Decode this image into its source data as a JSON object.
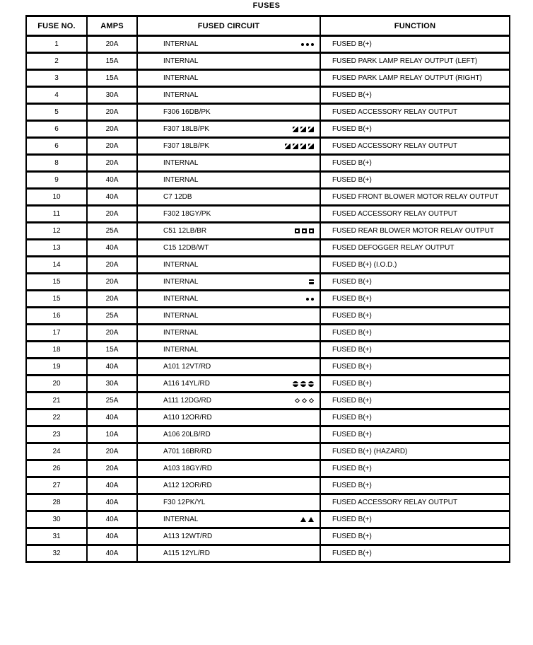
{
  "title": "FUSES",
  "colors": {
    "border": "#000000",
    "text": "#000000",
    "background": "#ffffff"
  },
  "table": {
    "headers": [
      "FUSE NO.",
      "AMPS",
      "FUSED CIRCUIT",
      "FUNCTION"
    ],
    "rows": [
      {
        "fuse_no": "1",
        "amps": "20A",
        "circuit": "INTERNAL",
        "icons": {
          "glyph": "bold-circle",
          "count": 3
        },
        "function": "FUSED B(+)"
      },
      {
        "fuse_no": "2",
        "amps": "15A",
        "circuit": "INTERNAL",
        "icons": null,
        "function": "FUSED PARK LAMP RELAY OUTPUT (LEFT)"
      },
      {
        "fuse_no": "3",
        "amps": "15A",
        "circuit": "INTERNAL",
        "icons": null,
        "function": "FUSED PARK LAMP RELAY OUTPUT (RIGHT)"
      },
      {
        "fuse_no": "4",
        "amps": "30A",
        "circuit": "INTERNAL",
        "icons": null,
        "function": "FUSED B(+)"
      },
      {
        "fuse_no": "5",
        "amps": "20A",
        "circuit": "F306 16DB/PK",
        "icons": null,
        "function": "FUSED ACCESSORY RELAY OUTPUT"
      },
      {
        "fuse_no": "6",
        "amps": "20A",
        "circuit": "F307 18LB/PK",
        "icons": {
          "glyph": "marked-square",
          "count": 3
        },
        "function": "FUSED B(+)"
      },
      {
        "fuse_no": "6",
        "amps": "20A",
        "circuit": "F307 18LB/PK",
        "icons": {
          "glyph": "marked-square",
          "count": 4
        },
        "function": "FUSED ACCESSORY RELAY OUTPUT"
      },
      {
        "fuse_no": "8",
        "amps": "20A",
        "circuit": "INTERNAL",
        "icons": null,
        "function": "FUSED B(+)"
      },
      {
        "fuse_no": "9",
        "amps": "40A",
        "circuit": "INTERNAL",
        "icons": null,
        "function": "FUSED B(+)"
      },
      {
        "fuse_no": "10",
        "amps": "40A",
        "circuit": "C7 12DB",
        "icons": null,
        "function": "FUSED FRONT BLOWER MOTOR RELAY OUTPUT"
      },
      {
        "fuse_no": "11",
        "amps": "20A",
        "circuit": "F302 18GY/PK",
        "icons": null,
        "function": "FUSED ACCESSORY RELAY OUTPUT"
      },
      {
        "fuse_no": "12",
        "amps": "25A",
        "circuit": "C51 12LB/BR",
        "icons": {
          "glyph": "open-square",
          "count": 3
        },
        "function": "FUSED REAR BLOWER MOTOR RELAY OUTPUT"
      },
      {
        "fuse_no": "13",
        "amps": "40A",
        "circuit": "C15 12DB/WT",
        "icons": null,
        "function": "FUSED DEFOGGER RELAY OUTPUT"
      },
      {
        "fuse_no": "14",
        "amps": "20A",
        "circuit": "INTERNAL",
        "icons": null,
        "function": "FUSED B(+) (I.O.D.)"
      },
      {
        "fuse_no": "15",
        "amps": "20A",
        "circuit": "INTERNAL",
        "icons": {
          "glyph": "striped-square",
          "count": 1
        },
        "function": "FUSED B(+)"
      },
      {
        "fuse_no": "15",
        "amps": "20A",
        "circuit": "INTERNAL",
        "icons": {
          "glyph": "bold-circle",
          "count": 2
        },
        "function": "FUSED B(+)"
      },
      {
        "fuse_no": "16",
        "amps": "25A",
        "circuit": "INTERNAL",
        "icons": null,
        "function": "FUSED B(+)"
      },
      {
        "fuse_no": "17",
        "amps": "20A",
        "circuit": "INTERNAL",
        "icons": null,
        "function": "FUSED B(+)"
      },
      {
        "fuse_no": "18",
        "amps": "15A",
        "circuit": "INTERNAL",
        "icons": null,
        "function": "FUSED B(+)"
      },
      {
        "fuse_no": "19",
        "amps": "40A",
        "circuit": "A101 12VT/RD",
        "icons": null,
        "function": "FUSED B(+)"
      },
      {
        "fuse_no": "20",
        "amps": "30A",
        "circuit": "A116 14YL/RD",
        "icons": {
          "glyph": "minus-circle",
          "count": 3
        },
        "function": "FUSED B(+)"
      },
      {
        "fuse_no": "21",
        "amps": "25A",
        "circuit": "A111 12DG/RD",
        "icons": {
          "glyph": "open-diamond",
          "count": 3
        },
        "function": "FUSED B(+)"
      },
      {
        "fuse_no": "22",
        "amps": "40A",
        "circuit": "A110 12OR/RD",
        "icons": null,
        "function": "FUSED B(+)"
      },
      {
        "fuse_no": "23",
        "amps": "10A",
        "circuit": "A106 20LB/RD",
        "icons": null,
        "function": "FUSED B(+)"
      },
      {
        "fuse_no": "24",
        "amps": "20A",
        "circuit": "A701 16BR/RD",
        "icons": null,
        "function": "FUSED B(+) (HAZARD)"
      },
      {
        "fuse_no": "26",
        "amps": "20A",
        "circuit": "A103 18GY/RD",
        "icons": null,
        "function": "FUSED B(+)"
      },
      {
        "fuse_no": "27",
        "amps": "40A",
        "circuit": "A112 12OR/RD",
        "icons": null,
        "function": "FUSED B(+)"
      },
      {
        "fuse_no": "28",
        "amps": "40A",
        "circuit": "F30 12PK/YL",
        "icons": null,
        "function": "FUSED ACCESSORY RELAY OUTPUT"
      },
      {
        "fuse_no": "30",
        "amps": "40A",
        "circuit": "INTERNAL",
        "icons": {
          "glyph": "filled-triangle",
          "count": 2
        },
        "function": "FUSED B(+)"
      },
      {
        "fuse_no": "31",
        "amps": "40A",
        "circuit": "A113 12WT/RD",
        "icons": null,
        "function": "FUSED B(+)"
      },
      {
        "fuse_no": "32",
        "amps": "40A",
        "circuit": "A115 12YL/RD",
        "icons": null,
        "function": "FUSED B(+)"
      }
    ]
  }
}
